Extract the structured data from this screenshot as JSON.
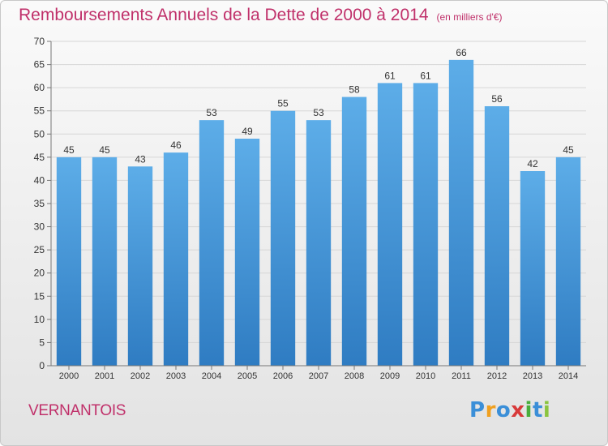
{
  "chart_data": {
    "type": "bar",
    "title": "Remboursements Annuels de la Dette de 2000 à 2014",
    "unit": "(en milliers d'€)",
    "categories": [
      "2000",
      "2001",
      "2002",
      "2003",
      "2004",
      "2005",
      "2006",
      "2007",
      "2008",
      "2009",
      "2010",
      "2011",
      "2012",
      "2013",
      "2014"
    ],
    "values": [
      45,
      45,
      43,
      46,
      53,
      49,
      55,
      53,
      58,
      61,
      61,
      66,
      56,
      42,
      45
    ],
    "ylim": [
      0,
      70
    ],
    "yticks": [
      0,
      5,
      10,
      15,
      20,
      25,
      30,
      35,
      40,
      45,
      50,
      55,
      60,
      65,
      70
    ],
    "grid": true,
    "bar_color": "#4f9fdf",
    "label": "VERNANTOIS"
  },
  "logo": {
    "text": "Proxiti",
    "letters": [
      "P",
      "r",
      "o",
      "x",
      "i",
      "t",
      "i"
    ],
    "colors": [
      "#3b8fd8",
      "#f0a020",
      "#3b8fd8",
      "#d83a3a",
      "#4aae3c",
      "#3b8fd8",
      "#8bc43f"
    ]
  }
}
